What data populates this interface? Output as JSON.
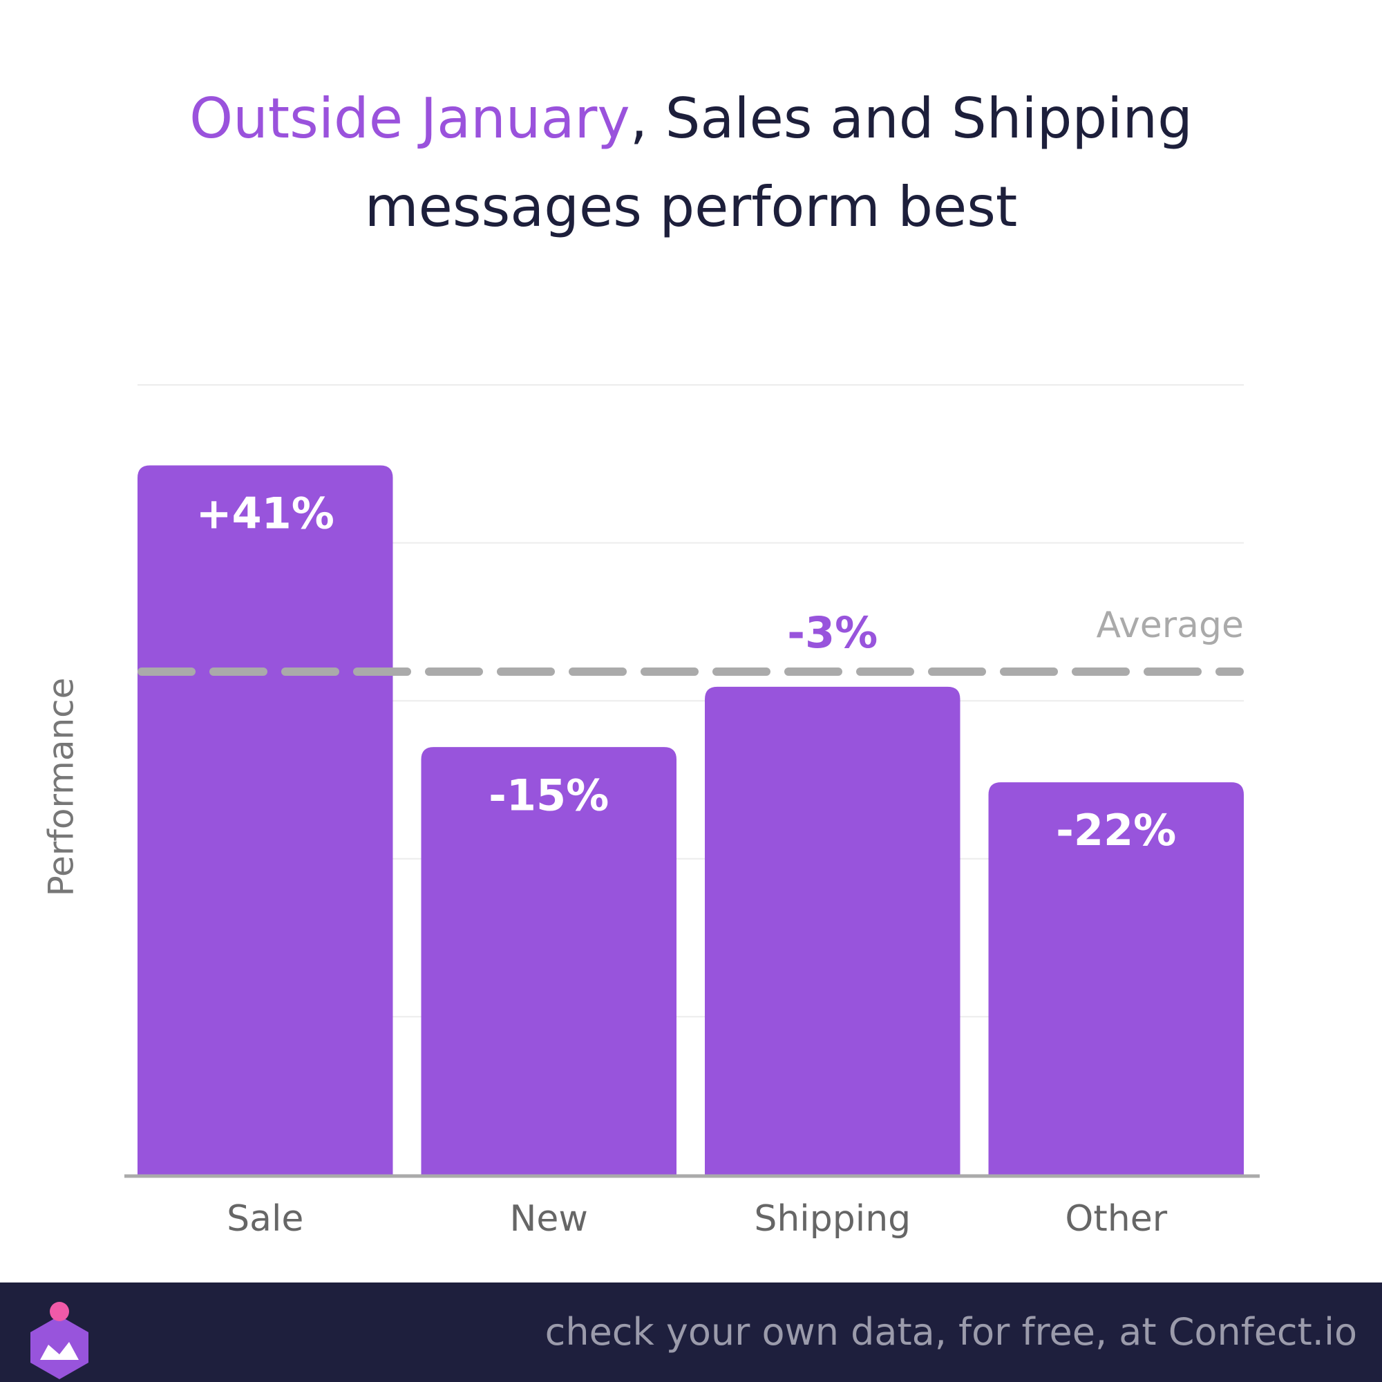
{
  "chart_data": {
    "type": "bar",
    "title": [
      {
        "text": "Outside January",
        "color": "#9a52dc"
      },
      {
        "text": ", Sales and Shipping",
        "color": "#1d1f3b"
      },
      {
        "text": "messages perform best",
        "color": "#1d1f3b"
      }
    ],
    "y_label": "Performance",
    "categories": [
      "Sale",
      "New",
      "Shipping",
      "Other"
    ],
    "values": [
      41,
      -15,
      -3,
      -22
    ],
    "value_labels": [
      "+41%",
      "-15%",
      "-3%",
      "-22%"
    ],
    "color": "#9854dc",
    "ylim": [
      -100,
      57
    ],
    "yticks": [
      -100,
      -68.6,
      -37.2,
      -5.8,
      25.6,
      57
    ],
    "grid": true,
    "reference_line": {
      "value": 0,
      "label": "Average"
    }
  },
  "footer": "check your own data, for free, at Confect.io"
}
